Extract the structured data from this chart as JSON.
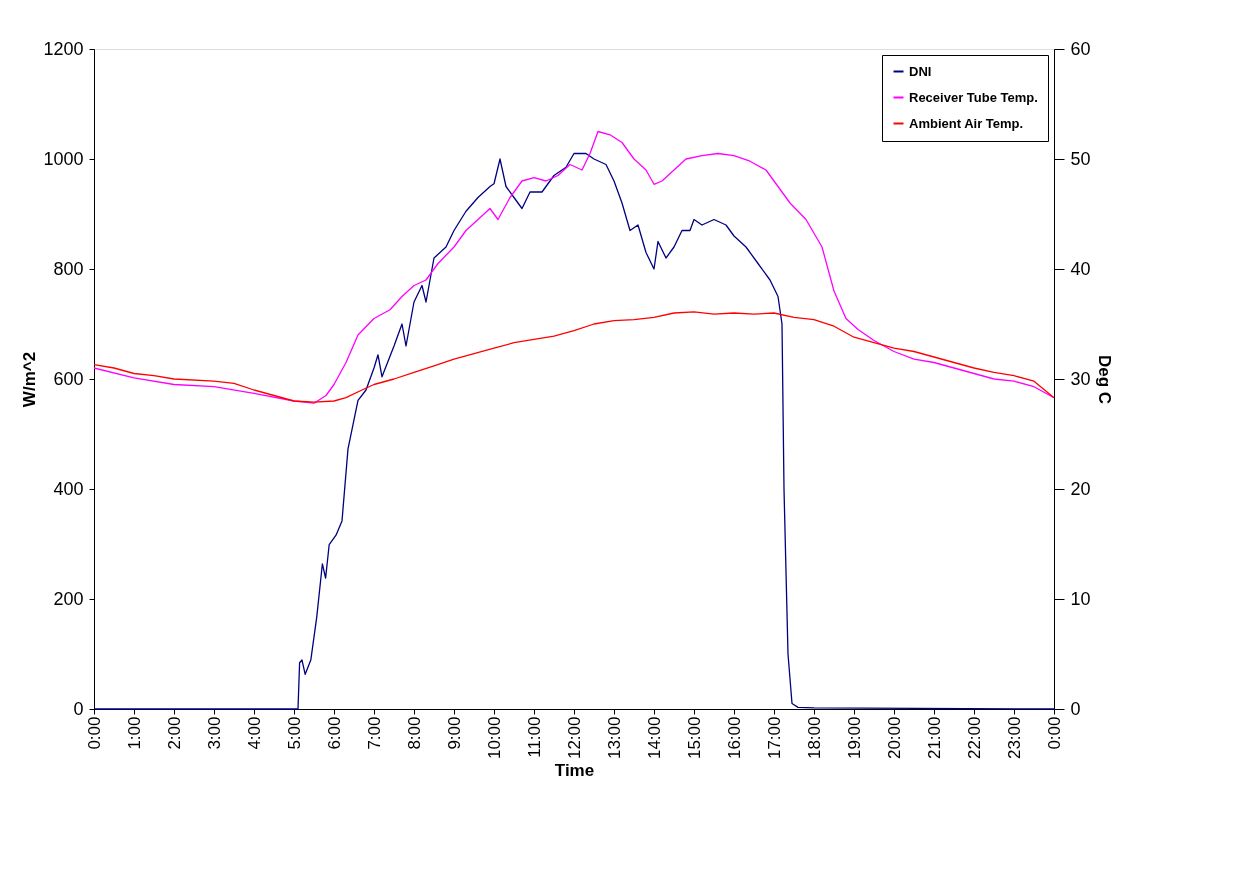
{
  "chart_data": {
    "type": "line",
    "xlabel": "Time",
    "ylabel": "W/m^2",
    "y2label": "Deg C",
    "xlim": [
      0,
      24
    ],
    "xticks": [
      {
        "value": 0,
        "label": "0:00"
      },
      {
        "value": 1,
        "label": "1:00"
      },
      {
        "value": 2,
        "label": "2:00"
      },
      {
        "value": 3,
        "label": "3:00"
      },
      {
        "value": 4,
        "label": "4:00"
      },
      {
        "value": 5,
        "label": "5:00"
      },
      {
        "value": 6,
        "label": "6:00"
      },
      {
        "value": 7,
        "label": "7:00"
      },
      {
        "value": 8,
        "label": "8:00"
      },
      {
        "value": 9,
        "label": "9:00"
      },
      {
        "value": 10,
        "label": "10:00"
      },
      {
        "value": 11,
        "label": "11:00"
      },
      {
        "value": 12,
        "label": "12:00"
      },
      {
        "value": 13,
        "label": "13:00"
      },
      {
        "value": 14,
        "label": "14:00"
      },
      {
        "value": 15,
        "label": "15:00"
      },
      {
        "value": 16,
        "label": "16:00"
      },
      {
        "value": 17,
        "label": "17:00"
      },
      {
        "value": 18,
        "label": "18:00"
      },
      {
        "value": 19,
        "label": "19:00"
      },
      {
        "value": 20,
        "label": "20:00"
      },
      {
        "value": 21,
        "label": "21:00"
      },
      {
        "value": 22,
        "label": "22:00"
      },
      {
        "value": 23,
        "label": "23:00"
      },
      {
        "value": 24,
        "label": "0:00"
      }
    ],
    "ylim": [
      0,
      1200
    ],
    "yticks": [
      0,
      200,
      400,
      600,
      800,
      1000,
      1200
    ],
    "y2lim": [
      0,
      60
    ],
    "y2ticks": [
      0,
      10,
      20,
      30,
      40,
      50,
      60
    ],
    "grid": false,
    "legend": "top right",
    "marker": "none",
    "line_style": "solid",
    "series": [
      {
        "name": "DNI",
        "color": "#000080",
        "x": [
          0,
          5.1,
          5.14,
          5.2,
          5.28,
          5.42,
          5.57,
          5.71,
          5.79,
          5.88,
          6.05,
          6.2,
          6.35,
          6.6,
          6.8,
          7.0,
          7.1,
          7.2,
          7.5,
          7.7,
          7.8,
          8.0,
          8.2,
          8.3,
          8.5,
          8.8,
          9.0,
          9.3,
          9.6,
          9.9,
          10.0,
          10.15,
          10.3,
          10.5,
          10.7,
          10.9,
          11.2,
          11.5,
          11.8,
          12.0,
          12.3,
          12.5,
          12.8,
          13.0,
          13.2,
          13.4,
          13.6,
          13.8,
          14.0,
          14.1,
          14.3,
          14.5,
          14.7,
          14.9,
          15.0,
          15.2,
          15.5,
          15.8,
          16.0,
          16.3,
          16.6,
          16.9,
          17.1,
          17.2,
          17.25,
          17.35,
          17.45,
          17.6,
          18.0,
          24
        ],
        "values": [
          0,
          0,
          84,
          89,
          63,
          89,
          168,
          264,
          238,
          299,
          316,
          342,
          473,
          561,
          580,
          620,
          644,
          604,
          660,
          700,
          660,
          740,
          770,
          740,
          820,
          840,
          870,
          905,
          930,
          950,
          955,
          1000,
          950,
          930,
          910,
          940,
          940,
          970,
          985,
          1010,
          1010,
          1000,
          990,
          960,
          920,
          870,
          880,
          830,
          800,
          850,
          820,
          840,
          870,
          870,
          890,
          880,
          890,
          880,
          860,
          840,
          810,
          780,
          750,
          700,
          400,
          100,
          10,
          3,
          2,
          0
        ]
      },
      {
        "name": "Receiver Tube Temp.",
        "color": "#ff00ff",
        "axis": "y2",
        "x": [
          0,
          1,
          2,
          3,
          4,
          5,
          5.5,
          5.8,
          6.0,
          6.3,
          6.6,
          7.0,
          7.4,
          7.7,
          8.0,
          8.3,
          8.6,
          9.0,
          9.3,
          9.6,
          9.9,
          10.1,
          10.4,
          10.7,
          11.0,
          11.3,
          11.6,
          11.9,
          12.2,
          12.4,
          12.6,
          12.9,
          13.2,
          13.5,
          13.8,
          14.0,
          14.2,
          14.5,
          14.8,
          15.2,
          15.6,
          16.0,
          16.4,
          16.8,
          17.1,
          17.4,
          17.8,
          18.2,
          18.5,
          18.8,
          19.1,
          19.5,
          20.0,
          20.5,
          21,
          21.5,
          22,
          22.5,
          23,
          23.5,
          24
        ],
        "values": [
          31.0,
          30.1,
          29.5,
          29.3,
          28.7,
          28.0,
          27.8,
          28.5,
          29.5,
          31.5,
          34,
          35.5,
          36.3,
          37.5,
          38.5,
          39,
          40.5,
          42,
          43.5,
          44.5,
          45.5,
          44.5,
          46.5,
          48,
          48.3,
          48,
          48.5,
          49.5,
          49,
          50.5,
          52.5,
          52.2,
          51.5,
          50,
          49,
          47.7,
          48,
          49,
          50,
          50.3,
          50.5,
          50.3,
          49.8,
          49,
          47.5,
          46,
          44.5,
          42,
          38,
          35.5,
          34.5,
          33.5,
          32.5,
          31.8,
          31.5,
          31.0,
          30.5,
          30.0,
          29.8,
          29.3,
          28.3
        ]
      },
      {
        "name": "Ambient Air Temp.",
        "color": "#ff0000",
        "axis": "y2",
        "x": [
          0,
          0.5,
          1,
          1.5,
          2,
          3,
          3.5,
          4,
          4.5,
          5,
          5.5,
          6.0,
          6.3,
          6.7,
          7.0,
          7.5,
          8.0,
          8.5,
          9.0,
          9.5,
          10.0,
          10.5,
          11.0,
          11.5,
          12.0,
          12.5,
          13.0,
          13.5,
          14.0,
          14.5,
          15.0,
          15.5,
          16.0,
          16.5,
          17.0,
          17.5,
          18.0,
          18.5,
          19.0,
          19.5,
          20.0,
          20.5,
          21,
          21.5,
          22,
          22.5,
          23,
          23.5,
          24
        ],
        "values": [
          31.3,
          31,
          30.5,
          30.3,
          30.0,
          29.8,
          29.6,
          29.0,
          28.5,
          28.0,
          27.9,
          28.0,
          28.3,
          29.0,
          29.5,
          30.0,
          30.6,
          31.2,
          31.8,
          32.3,
          32.8,
          33.3,
          33.6,
          33.9,
          34.4,
          35.0,
          35.3,
          35.4,
          35.6,
          36.0,
          36.1,
          35.9,
          36.0,
          35.9,
          36.0,
          35.6,
          35.4,
          34.8,
          33.8,
          33.3,
          32.8,
          32.5,
          32.0,
          31.5,
          31.0,
          30.6,
          30.3,
          29.8,
          28.3
        ]
      }
    ]
  }
}
